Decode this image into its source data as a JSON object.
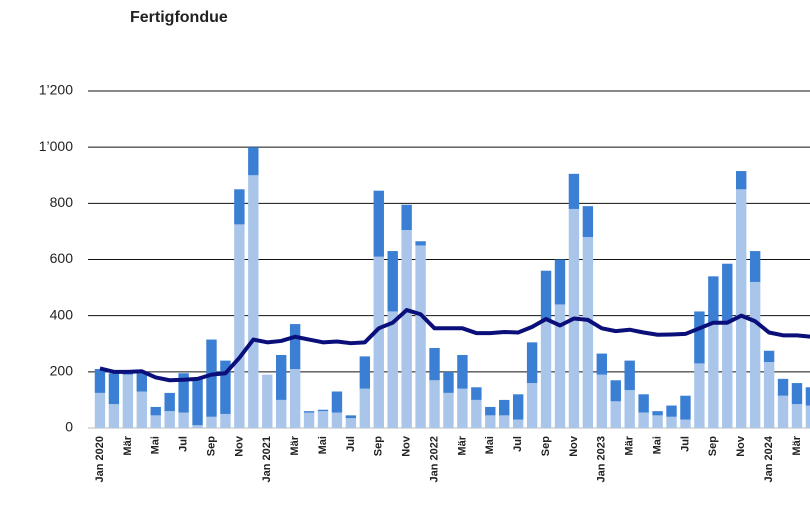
{
  "chart_data": {
    "type": "bar-line",
    "title": "Fertigfondue",
    "categories": [
      "Jan 2020",
      null,
      "Mär",
      null,
      "Mai",
      null,
      "Jul",
      null,
      "Sep",
      null,
      "Nov",
      null,
      "Jan 2021",
      null,
      "Mär",
      null,
      "Mai",
      null,
      "Jul",
      null,
      "Sep",
      null,
      "Nov",
      null,
      "Jan 2022",
      null,
      "Mär",
      null,
      "Mai",
      null,
      "Jul",
      null,
      "Sep",
      null,
      "Nov",
      null,
      "Jan 2023",
      null,
      "Mär",
      null,
      "Mai",
      null,
      "Jul",
      null,
      "Sep",
      null,
      "Nov",
      null,
      "Jan 2024",
      null,
      "Mär",
      null
    ],
    "series": [
      {
        "type": "bar",
        "color": "#a9c6ea",
        "values": [
          125,
          85,
          190,
          130,
          45,
          60,
          55,
          10,
          40,
          50,
          725,
          900,
          190,
          100,
          210,
          55,
          60,
          55,
          35,
          140,
          610,
          415,
          705,
          650,
          170,
          125,
          140,
          100,
          45,
          45,
          30,
          160,
          385,
          440,
          780,
          680,
          190,
          95,
          135,
          55,
          45,
          40,
          30,
          230,
          375,
          380,
          850,
          520,
          235,
          115,
          85,
          80
        ]
      },
      {
        "type": "bar",
        "color": "#3b7fd4",
        "values": [
          85,
          110,
          10,
          65,
          30,
          65,
          140,
          170,
          275,
          190,
          125,
          100,
          0,
          160,
          160,
          5,
          5,
          75,
          10,
          115,
          235,
          215,
          90,
          15,
          115,
          75,
          120,
          45,
          30,
          55,
          90,
          145,
          175,
          160,
          125,
          110,
          75,
          75,
          105,
          65,
          15,
          40,
          85,
          185,
          165,
          205,
          65,
          110,
          40,
          60,
          75,
          65
        ]
      },
      {
        "type": "line",
        "color": "#0b0f7a",
        "values": [
          212,
          200,
          200,
          202,
          180,
          170,
          172,
          175,
          190,
          195,
          250,
          315,
          305,
          310,
          325,
          315,
          305,
          308,
          302,
          305,
          355,
          375,
          420,
          405,
          355,
          355,
          355,
          338,
          338,
          342,
          340,
          360,
          388,
          365,
          390,
          385,
          355,
          345,
          350,
          340,
          332,
          333,
          335,
          355,
          375,
          375,
          400,
          380,
          340,
          330,
          330,
          325
        ]
      }
    ],
    "ylim": [
      0,
      1200
    ],
    "yticks": [
      0,
      200,
      400,
      600,
      800,
      {
        "value": 1000,
        "label": "1’000"
      },
      {
        "value": 1200,
        "label": "1’200"
      }
    ],
    "grid": true
  }
}
